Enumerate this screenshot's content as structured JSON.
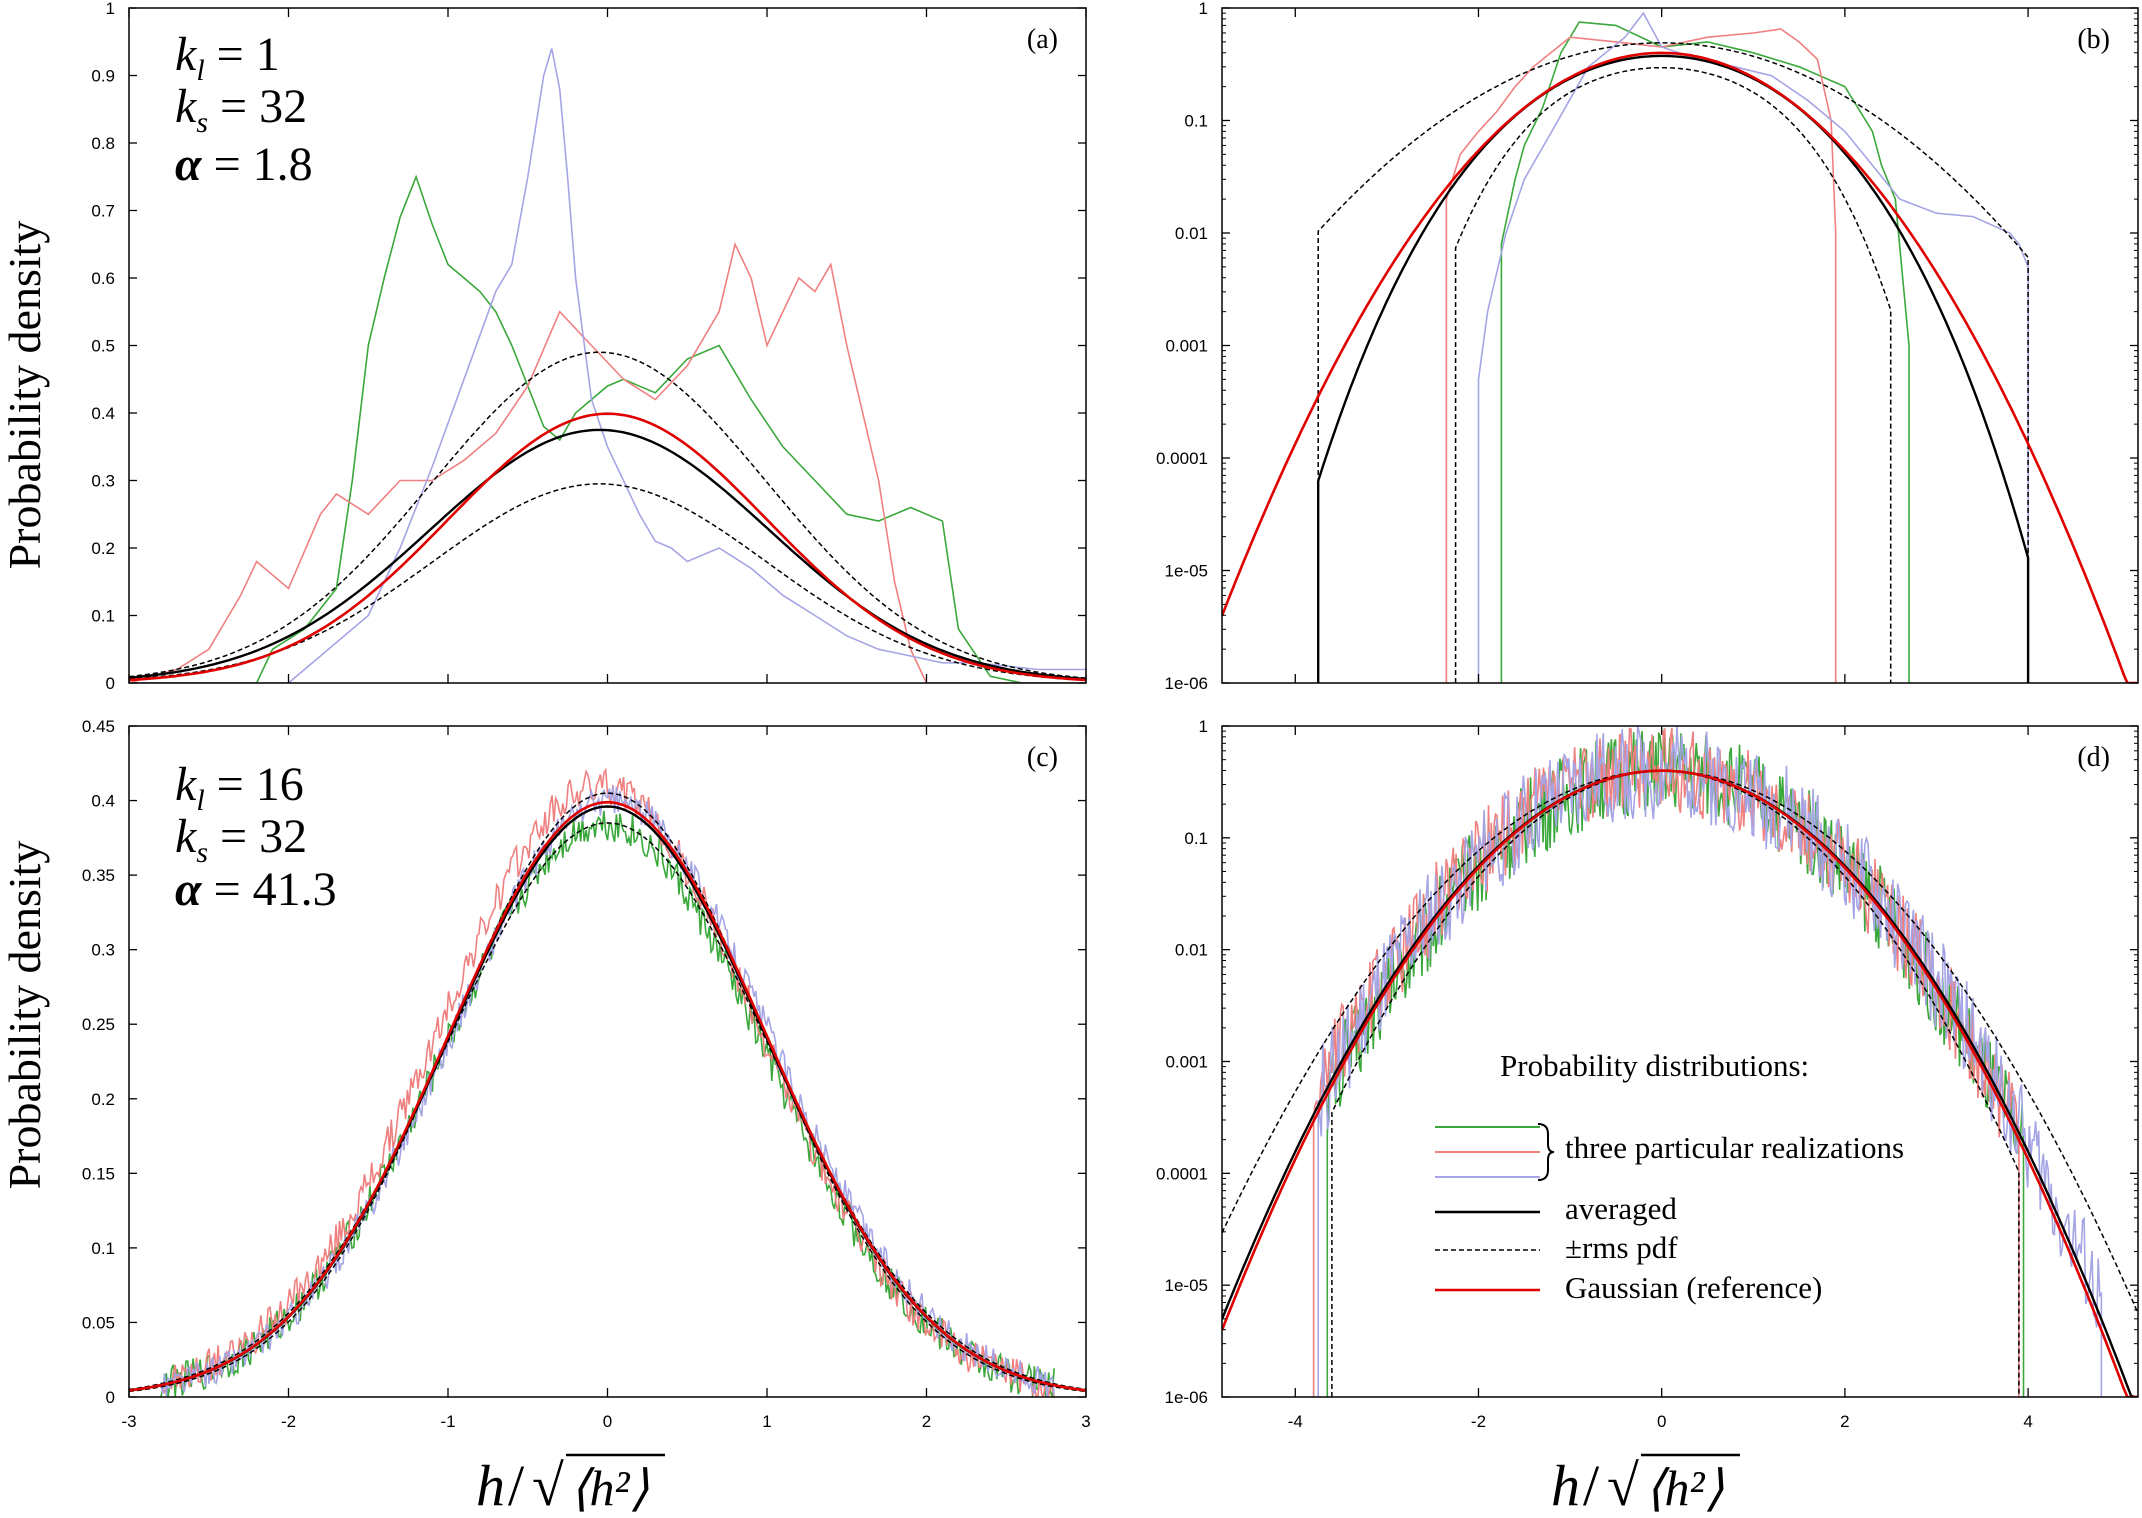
{
  "figure": {
    "y_label": "Probability density",
    "x_label": {
      "h": "h",
      "slash": "/",
      "inner": "⟨h²⟩"
    }
  },
  "params_top": {
    "kl": "1",
    "ks": "32",
    "alpha": "1.8"
  },
  "params_bottom": {
    "kl": "16",
    "ks": "32",
    "alpha": "41.3"
  },
  "colors": {
    "green": "#3aa83a",
    "pink": "#f08080",
    "lavender": "#a5a5e6",
    "black": "#000000",
    "red": "#e00000"
  },
  "legend": {
    "title": "Probability distributions:",
    "realizations": "three particular realizations",
    "averaged": "averaged",
    "rms": "±rms pdf",
    "gaussian": "Gaussian (reference)"
  },
  "chart_data": [
    {
      "panel": "(a)",
      "type": "line",
      "yscale": "linear",
      "xlim": [
        -3,
        3
      ],
      "ylim": [
        0,
        1
      ],
      "xticks": [
        -3,
        -2,
        -1,
        0,
        1,
        2,
        3
      ],
      "yticks": [
        "0",
        "0.1",
        "0.2",
        "0.3",
        "0.4",
        "0.5",
        "0.6",
        "0.7",
        "0.8",
        "0.9",
        "1"
      ],
      "x_tick_labels_shown": false,
      "series": [
        {
          "name": "realization 1",
          "color": "green",
          "x": [
            -3,
            -2.2,
            -2.1,
            -1.9,
            -1.7,
            -1.6,
            -1.5,
            -1.4,
            -1.3,
            -1.2,
            -1.1,
            -1.0,
            -0.9,
            -0.8,
            -0.7,
            -0.6,
            -0.5,
            -0.4,
            -0.3,
            -0.2,
            -0.1,
            0,
            0.1,
            0.3,
            0.5,
            0.7,
            0.9,
            1.1,
            1.3,
            1.5,
            1.7,
            1.9,
            2.1,
            2.2,
            2.4,
            2.6,
            3
          ],
          "y": [
            0,
            0,
            0.05,
            0.08,
            0.14,
            0.3,
            0.5,
            0.6,
            0.69,
            0.75,
            0.68,
            0.62,
            0.6,
            0.58,
            0.55,
            0.5,
            0.44,
            0.38,
            0.36,
            0.4,
            0.42,
            0.44,
            0.45,
            0.43,
            0.48,
            0.5,
            0.42,
            0.35,
            0.3,
            0.25,
            0.24,
            0.26,
            0.24,
            0.08,
            0.01,
            0,
            0
          ]
        },
        {
          "name": "realization 2",
          "color": "pink",
          "x": [
            -3,
            -2.7,
            -2.5,
            -2.3,
            -2.2,
            -2.0,
            -1.8,
            -1.7,
            -1.5,
            -1.3,
            -1.1,
            -0.9,
            -0.7,
            -0.5,
            -0.3,
            -0.1,
            0.1,
            0.3,
            0.5,
            0.7,
            0.8,
            0.9,
            1.0,
            1.1,
            1.2,
            1.3,
            1.4,
            1.5,
            1.6,
            1.7,
            1.8,
            1.9,
            2.0,
            3
          ],
          "y": [
            0,
            0.02,
            0.05,
            0.13,
            0.18,
            0.14,
            0.25,
            0.28,
            0.25,
            0.3,
            0.3,
            0.33,
            0.37,
            0.44,
            0.55,
            0.5,
            0.45,
            0.42,
            0.47,
            0.55,
            0.65,
            0.6,
            0.5,
            0.55,
            0.6,
            0.58,
            0.62,
            0.5,
            0.4,
            0.3,
            0.15,
            0.05,
            0,
            0
          ]
        },
        {
          "name": "realization 3",
          "color": "lavender",
          "x": [
            -3,
            -2.0,
            -1.9,
            -1.7,
            -1.5,
            -1.3,
            -1.1,
            -0.9,
            -0.7,
            -0.6,
            -0.5,
            -0.4,
            -0.35,
            -0.3,
            -0.25,
            -0.2,
            -0.1,
            0,
            0.1,
            0.2,
            0.3,
            0.4,
            0.5,
            0.7,
            0.9,
            1.1,
            1.3,
            1.5,
            1.7,
            1.9,
            2.1,
            2.3,
            2.5,
            2.7,
            3
          ],
          "y": [
            0,
            0,
            0.02,
            0.06,
            0.1,
            0.2,
            0.32,
            0.45,
            0.58,
            0.62,
            0.75,
            0.9,
            0.94,
            0.88,
            0.75,
            0.6,
            0.42,
            0.35,
            0.3,
            0.25,
            0.21,
            0.2,
            0.18,
            0.2,
            0.17,
            0.13,
            0.1,
            0.07,
            0.05,
            0.04,
            0.03,
            0.03,
            0.025,
            0.02,
            0.02
          ]
        },
        {
          "name": "averaged",
          "color": "black",
          "function": "gauss",
          "mu": -0.05,
          "sigma": 1.06,
          "amp": 0.375
        },
        {
          "name": "+rms",
          "color": "black",
          "dashed": true,
          "function": "gauss",
          "mu": -0.05,
          "sigma": 1.05,
          "amp": 0.49
        },
        {
          "name": "-rms",
          "color": "black",
          "dashed": true,
          "function": "gauss",
          "mu": -0.05,
          "sigma": 1.05,
          "amp": 0.295
        },
        {
          "name": "gaussian",
          "color": "red",
          "function": "gauss",
          "mu": 0,
          "sigma": 1,
          "amp": 0.3989
        }
      ]
    },
    {
      "panel": "(b)",
      "type": "line",
      "yscale": "log",
      "xlim": [
        -4.8,
        5.2
      ],
      "ylim": [
        1e-06,
        1
      ],
      "xticks": [
        -4,
        -2,
        0,
        2,
        4
      ],
      "yticks": [
        "1e-06",
        "1e-05",
        "0.0001",
        "0.001",
        "0.01",
        "0.1",
        "1"
      ],
      "x_tick_labels_shown": false,
      "series": [
        {
          "name": "realization 1",
          "color": "green",
          "x": [
            -1.75,
            -1.75,
            -1.6,
            -1.5,
            -1.3,
            -1.1,
            -0.9,
            -0.5,
            0,
            0.5,
            1.0,
            1.5,
            2.0,
            2.3,
            2.4,
            2.55,
            2.7,
            2.7
          ],
          "y": [
            1e-06,
            0.008,
            0.03,
            0.06,
            0.13,
            0.4,
            0.75,
            0.7,
            0.45,
            0.5,
            0.4,
            0.3,
            0.2,
            0.08,
            0.04,
            0.02,
            0.001,
            1e-06
          ]
        },
        {
          "name": "realization 2",
          "color": "pink",
          "x": [
            -2.35,
            -2.35,
            -2.2,
            -2.0,
            -1.8,
            -1.6,
            -1.4,
            -1.0,
            -0.5,
            0,
            0.5,
            1.0,
            1.3,
            1.5,
            1.7,
            1.85,
            1.9,
            1.9
          ],
          "y": [
            1e-06,
            0.02,
            0.05,
            0.08,
            0.12,
            0.2,
            0.3,
            0.55,
            0.5,
            0.45,
            0.55,
            0.6,
            0.65,
            0.5,
            0.35,
            0.1,
            0.01,
            1e-06
          ]
        },
        {
          "name": "realization 3",
          "color": "lavender",
          "x": [
            -2.0,
            -2.0,
            -1.9,
            -1.7,
            -1.5,
            -1.2,
            -0.8,
            -0.4,
            -0.2,
            0,
            0.4,
            0.8,
            1.2,
            1.6,
            2.0,
            2.3,
            2.6,
            3.0,
            3.4,
            3.8,
            3.9,
            4.0,
            4.0
          ],
          "y": [
            1e-06,
            0.0005,
            0.002,
            0.01,
            0.03,
            0.08,
            0.3,
            0.55,
            0.9,
            0.45,
            0.35,
            0.3,
            0.25,
            0.15,
            0.08,
            0.04,
            0.02,
            0.015,
            0.014,
            0.01,
            0.008,
            0.005,
            1e-06
          ]
        },
        {
          "name": "averaged",
          "color": "black",
          "function": "quartic",
          "amp": 0.375,
          "a": 0.45,
          "b": 0.012,
          "xmin": -3.75,
          "xmax": 4.0
        },
        {
          "name": "+rms",
          "color": "black",
          "dashed": true,
          "function": "gauss",
          "mu": 0,
          "sigma": 1.35,
          "amp": 0.49,
          "xmin": -3.75,
          "xmax": 4.0
        },
        {
          "name": "-rms",
          "color": "black",
          "dashed": true,
          "function": "quartic",
          "amp": 0.295,
          "a": 0.45,
          "b": 0.055,
          "xmin": -2.25,
          "xmax": 2.5
        },
        {
          "name": "gaussian",
          "color": "red",
          "function": "gauss",
          "mu": 0,
          "sigma": 1,
          "amp": 0.3989
        }
      ]
    },
    {
      "panel": "(c)",
      "type": "line",
      "yscale": "linear",
      "xlim": [
        -3,
        3
      ],
      "ylim": [
        0,
        0.45
      ],
      "xticks": [
        -3,
        -2,
        -1,
        0,
        1,
        2,
        3
      ],
      "yticks": [
        "0",
        "0.05",
        "0.1",
        "0.15",
        "0.2",
        "0.25",
        "0.3",
        "0.35",
        "0.4",
        "0.45"
      ],
      "x_tick_labels_shown": true,
      "series": [
        {
          "name": "realization 1",
          "color": "green",
          "function": "gauss",
          "mu": -0.02,
          "sigma": 1.0,
          "amp": 0.385,
          "noise": 0.012,
          "xmin": -2.8,
          "xmax": 2.8
        },
        {
          "name": "realization 2",
          "color": "pink",
          "function": "gauss",
          "mu": -0.05,
          "sigma": 1.0,
          "amp": 0.41,
          "noise": 0.012,
          "xmin": -2.8,
          "xmax": 2.8
        },
        {
          "name": "realization 3",
          "color": "lavender",
          "function": "gauss",
          "mu": 0.02,
          "sigma": 1.0,
          "amp": 0.4,
          "noise": 0.01,
          "xmin": -2.8,
          "xmax": 2.8
        },
        {
          "name": "averaged",
          "color": "black",
          "function": "gauss",
          "mu": 0,
          "sigma": 1,
          "amp": 0.396
        },
        {
          "name": "+rms",
          "color": "black",
          "dashed": true,
          "function": "gauss",
          "mu": 0,
          "sigma": 0.98,
          "amp": 0.405
        },
        {
          "name": "-rms",
          "color": "black",
          "dashed": true,
          "function": "gauss",
          "mu": 0,
          "sigma": 1.02,
          "amp": 0.385
        },
        {
          "name": "gaussian",
          "color": "red",
          "function": "gauss",
          "mu": 0,
          "sigma": 1,
          "amp": 0.3989
        }
      ]
    },
    {
      "panel": "(d)",
      "type": "line",
      "yscale": "log",
      "xlim": [
        -4.8,
        5.2
      ],
      "ylim": [
        1e-06,
        1
      ],
      "xticks": [
        -4,
        -2,
        0,
        2,
        4
      ],
      "yticks": [
        "1e-06",
        "1e-05",
        "0.0001",
        "0.001",
        "0.01",
        "0.1",
        "1"
      ],
      "x_tick_labels_shown": true,
      "series": [
        {
          "name": "realization 1",
          "color": "green",
          "function": "gauss",
          "mu": 0,
          "sigma": 1,
          "amp": 0.3989,
          "noise": 0.9,
          "xmin": -3.65,
          "xmax": 3.95
        },
        {
          "name": "realization 2",
          "color": "pink",
          "function": "gauss",
          "mu": -0.05,
          "sigma": 1.02,
          "amp": 0.41,
          "noise": 0.9,
          "xmin": -3.8,
          "xmax": 3.9
        },
        {
          "name": "realization 3",
          "color": "lavender",
          "function": "gauss",
          "mu": 0,
          "sigma": 1.02,
          "amp": 0.4,
          "noise": 1.0,
          "xmin": -3.75,
          "xmax": 4.8
        },
        {
          "name": "averaged",
          "color": "black",
          "function": "gauss",
          "mu": 0,
          "sigma": 1.01,
          "amp": 0.398
        },
        {
          "name": "+rms",
          "color": "black",
          "dashed": true,
          "function": "gauss",
          "mu": 0,
          "sigma": 1.1,
          "amp": 0.4
        },
        {
          "name": "-rms",
          "color": "black",
          "dashed": true,
          "function": "gauss",
          "mu": 0,
          "sigma": 0.96,
          "amp": 0.396,
          "xmin": -3.6,
          "xmax": 3.9
        },
        {
          "name": "gaussian",
          "color": "red",
          "function": "gauss",
          "mu": 0,
          "sigma": 1,
          "amp": 0.3989
        }
      ]
    }
  ]
}
